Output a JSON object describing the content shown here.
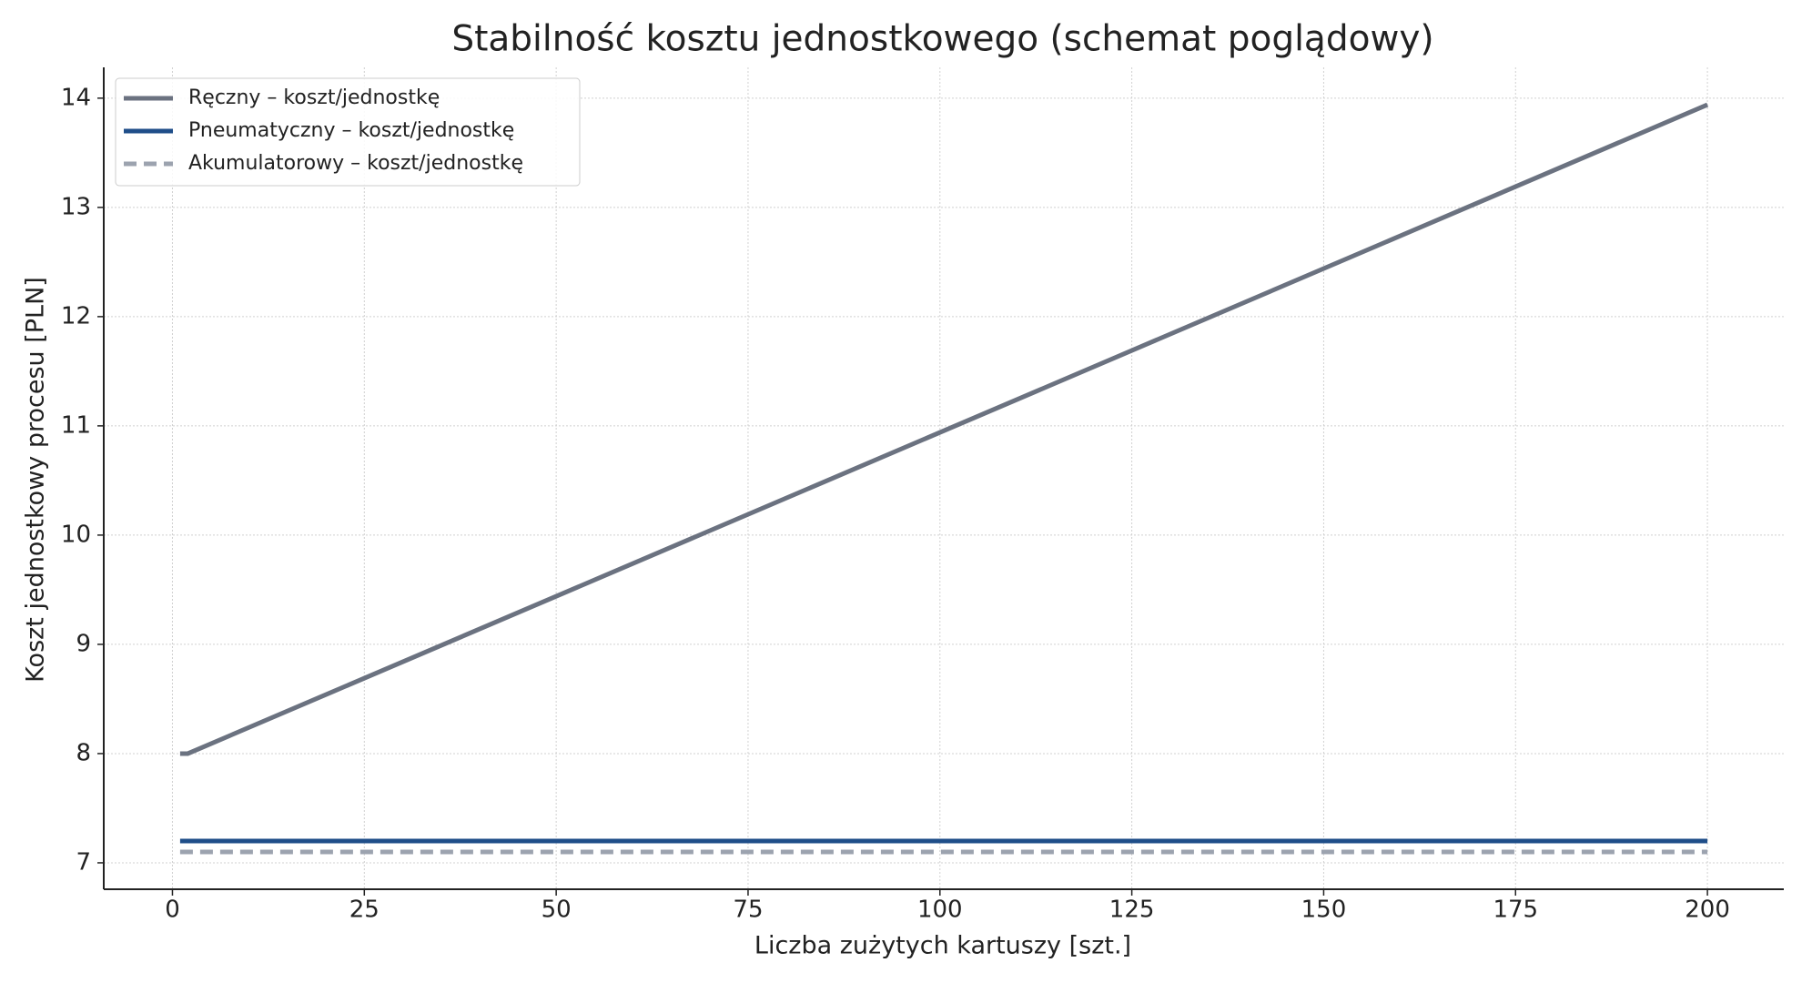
{
  "chart_data": {
    "type": "line",
    "title": "Stabilność kosztu jednostkowego (schemat poglądowy)",
    "x_label": "Liczba zużytych kartuszy [szt.]",
    "y_label": "Koszt jednostkowy procesu [PLN]",
    "x": [
      1,
      2,
      200
    ],
    "series": [
      {
        "name": "Ręczny – koszt/jednostkę",
        "color": "#6b7280",
        "linestyle": "solid",
        "values": [
          8,
          8,
          13.94
        ]
      },
      {
        "name": "Pneumatyczny – koszt/jednostkę",
        "color": "#1f4e89",
        "linestyle": "solid",
        "values": [
          7.2,
          7.2,
          7.2
        ]
      },
      {
        "name": "Akumulatorowy – koszt/jednostkę",
        "color": "#9ca3af",
        "linestyle": "dashed",
        "values": [
          7.1,
          7.1,
          7.1
        ]
      }
    ],
    "xlim": [
      -8.95,
      209.95
    ],
    "xticks": [
      0,
      25,
      50,
      75,
      100,
      125,
      150,
      175,
      200
    ],
    "ylim": [
      6.758,
      14.282
    ],
    "yticks": [
      7,
      8,
      9,
      10,
      11,
      12,
      13,
      14
    ],
    "grid": true,
    "legend": "upper-left"
  }
}
